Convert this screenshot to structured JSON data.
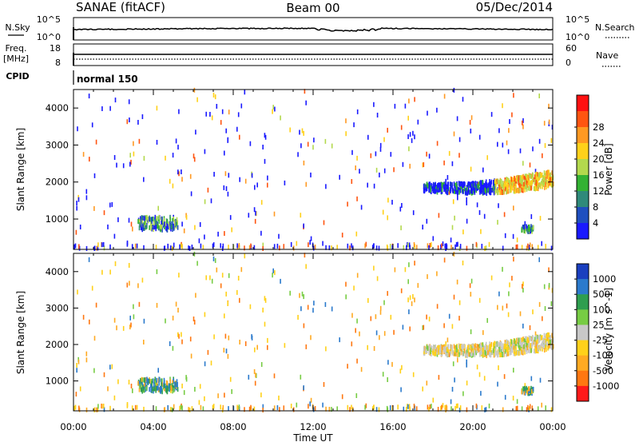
{
  "header": {
    "radar": "SANAE (fitACF)",
    "beam": "Beam 00",
    "date": "05/Dec/2014"
  },
  "noise_panel": {
    "left_label": "N.Sky",
    "left_ticks": [
      "10^5",
      "10^0"
    ],
    "right_label": "N.Search",
    "right_ticks": [
      "10^5",
      "10^0"
    ]
  },
  "freq_panel": {
    "left_label_1": "Freq.",
    "left_label_2": "[MHz]",
    "left_ticks": [
      "18",
      "8"
    ],
    "right_label": "Nave",
    "right_ticks": [
      "60",
      "0"
    ]
  },
  "cpid": {
    "label": "CPID",
    "mode": "normal 150"
  },
  "chart_data": [
    {
      "type": "heatmap",
      "name": "power",
      "ylabel": "Slant Range [km]",
      "xlabel": "",
      "x_ticks": [
        "00:00",
        "04:00",
        "08:00",
        "12:00",
        "16:00",
        "20:00",
        "00:00"
      ],
      "x_range_hours": [
        0,
        24
      ],
      "y_range_km": [
        180,
        4500
      ],
      "y_ticks": [
        1000,
        2000,
        3000,
        4000
      ],
      "colorbar": {
        "label": "Power [dB]",
        "ticks": [
          "4",
          "8",
          "12",
          "16",
          "20",
          "24",
          "28"
        ],
        "colors": [
          "#1a1aff",
          "#1f4fbf",
          "#2f8a7a",
          "#33b233",
          "#b3d94d",
          "#ffd11a",
          "#ff9922",
          "#ff5511",
          "#ff1111"
        ]
      },
      "features": [
        {
          "name": "echo band",
          "hours": [
            17.5,
            24
          ],
          "range_km": [
            1700,
            2300
          ]
        },
        {
          "name": "near-range patch",
          "hours": [
            3.2,
            5.2
          ],
          "range_km": [
            700,
            1050
          ]
        },
        {
          "name": "near-range patch",
          "hours": [
            22.4,
            23
          ],
          "range_km": [
            650,
            800
          ]
        }
      ]
    },
    {
      "type": "heatmap",
      "name": "velocity",
      "ylabel": "Slant Range [km]",
      "xlabel": "Time UT",
      "x_ticks": [
        "00:00",
        "04:00",
        "08:00",
        "12:00",
        "16:00",
        "20:00",
        "00:00"
      ],
      "x_range_hours": [
        0,
        24
      ],
      "y_range_km": [
        180,
        4500
      ],
      "y_ticks": [
        1000,
        2000,
        3000,
        4000
      ],
      "colorbar": {
        "label": "Velocity [m s^-1]",
        "ticks": [
          "1000",
          "500",
          "100",
          "25",
          "-25",
          "-100",
          "-500",
          "-1000"
        ],
        "colors": [
          "#1a3fbf",
          "#2b7acc",
          "#2e9e4f",
          "#77cc44",
          "#c8c8c8",
          "#ffd11a",
          "#ffaa22",
          "#ff7711",
          "#ff1a1a"
        ]
      },
      "features": [
        {
          "name": "echo band",
          "hours": [
            17.5,
            24
          ],
          "range_km": [
            1700,
            2300
          ]
        },
        {
          "name": "near-range patch",
          "hours": [
            3.2,
            5.2
          ],
          "range_km": [
            700,
            1050
          ]
        },
        {
          "name": "near-range patch",
          "hours": [
            22.4,
            23
          ],
          "range_km": [
            650,
            800
          ]
        }
      ]
    }
  ]
}
